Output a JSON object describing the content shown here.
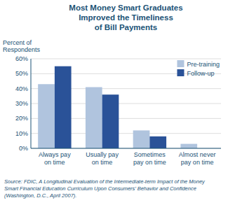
{
  "chart_data": {
    "type": "bar",
    "title": "Most Money Smart Graduates\nImproved the Timeliness\nof Bill Payments",
    "y_label": "Percent of\nRespondents",
    "source": "Source: FDIC, A Longitudinal Evaluation of the Intermediate-term Impact of the Money\nSmart Financial Education Curriculum Upon Consumers’ Behavior and Confidence\n(Washington, D.C., April 2007).",
    "categories": [
      "Always pay\non time",
      "Usually pay\non time",
      "Sometimes\npay on time",
      "Almost never\npay on time"
    ],
    "series": [
      {
        "name": "Pre-training",
        "color": "#b0c4de",
        "values": [
          43,
          41,
          12,
          3
        ]
      },
      {
        "name": "Follow-up",
        "color": "#2a5298",
        "values": [
          55,
          36,
          8,
          0
        ]
      }
    ],
    "ylim": [
      0,
      60
    ],
    "yticks": [
      {
        "value": 0,
        "label": "0%"
      },
      {
        "value": 10,
        "label": "10%"
      },
      {
        "value": 20,
        "label": "20%"
      },
      {
        "value": 30,
        "label": "30%"
      },
      {
        "value": 40,
        "label": "40%"
      },
      {
        "value": 50,
        "label": "50%"
      },
      {
        "value": 60,
        "label": "60%"
      }
    ],
    "grid": true,
    "legend": "upper right"
  }
}
